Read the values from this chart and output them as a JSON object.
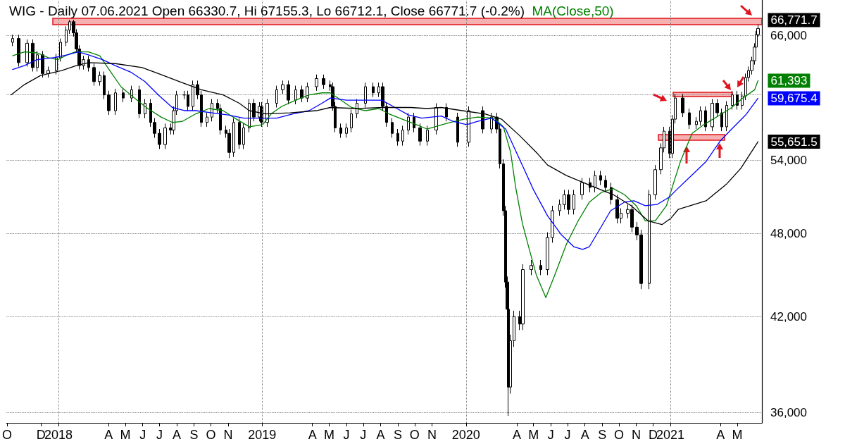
{
  "chart_data": {
    "type": "candlestick",
    "title": "WIG - Daily 07.06.2021 Open 66330.7, Hi 67155.3, Lo 66712.1, Close 66771.7 (-0.2%)",
    "log": "y",
    "grid": "y",
    "line_style": "solid",
    "xlim": [
      "2017-09-30",
      "2021-06-14"
    ],
    "ylim": [
      35400,
      69900
    ],
    "xticks": [
      {
        "value": "2017-10",
        "label": "O"
      },
      {
        "value": "2017-12",
        "label": "D"
      },
      {
        "value": "2018-01",
        "label": "2018"
      },
      {
        "value": "2018-04",
        "label": "A"
      },
      {
        "value": "2018-05",
        "label": "M"
      },
      {
        "value": "2018-06",
        "label": "J"
      },
      {
        "value": "2018-07",
        "label": "J"
      },
      {
        "value": "2018-08",
        "label": "A"
      },
      {
        "value": "2018-09",
        "label": "S"
      },
      {
        "value": "2018-10",
        "label": "O"
      },
      {
        "value": "2018-11",
        "label": "N"
      },
      {
        "value": "2019-01",
        "label": "2019"
      },
      {
        "value": "2019-04",
        "label": "A"
      },
      {
        "value": "2019-05",
        "label": "M"
      },
      {
        "value": "2019-06",
        "label": "J"
      },
      {
        "value": "2019-07",
        "label": "J"
      },
      {
        "value": "2019-08",
        "label": "A"
      },
      {
        "value": "2019-09",
        "label": "S"
      },
      {
        "value": "2019-10",
        "label": "O"
      },
      {
        "value": "2019-11",
        "label": "N"
      },
      {
        "value": "2020-01",
        "label": "2020"
      },
      {
        "value": "2020-04",
        "label": "A"
      },
      {
        "value": "2020-05",
        "label": "M"
      },
      {
        "value": "2020-06",
        "label": "J"
      },
      {
        "value": "2020-07",
        "label": "J"
      },
      {
        "value": "2020-08",
        "label": "A"
      },
      {
        "value": "2020-09",
        "label": "S"
      },
      {
        "value": "2020-10",
        "label": "O"
      },
      {
        "value": "2020-11",
        "label": "N"
      },
      {
        "value": "2020-12",
        "label": "D"
      },
      {
        "value": "2021-01",
        "label": "2021"
      },
      {
        "value": "2021-04",
        "label": "A"
      },
      {
        "value": "2021-05",
        "label": "M"
      }
    ],
    "yticks": [
      {
        "value": 36000,
        "label": "36,000"
      },
      {
        "value": 42000,
        "label": "42,000"
      },
      {
        "value": 48000,
        "label": "48,000"
      },
      {
        "value": 54000,
        "label": "54,000"
      },
      {
        "value": 60000,
        "label": null
      },
      {
        "value": 66000,
        "label": "66,000"
      }
    ],
    "ref_lines": [
      {
        "axis": "x",
        "value": "2018-01-01",
        "color": "#808080",
        "line_style": "dotted"
      },
      {
        "axis": "x",
        "value": "2019-01-01",
        "color": "#808080",
        "line_style": "dotted"
      },
      {
        "axis": "x",
        "value": "2020-01-01",
        "color": "#808080",
        "line_style": "dotted"
      },
      {
        "axis": "x",
        "value": "2021-01-01",
        "color": "#808080",
        "line_style": "dotted"
      }
    ],
    "series": [
      {
        "type": "candlestick",
        "color": "#000000",
        "x": [
          "2017-10-11",
          "2017-10-22",
          "2017-11-06",
          "2017-11-16",
          "2017-11-24",
          "2017-12-04",
          "2017-12-14",
          "2017-12-28",
          "2018-01-05",
          "2018-01-15",
          "2018-01-21",
          "2018-01-28",
          "2018-02-02",
          "2018-02-07",
          "2018-02-15",
          "2018-02-24",
          "2018-03-06",
          "2018-03-16",
          "2018-03-24",
          "2018-04-01",
          "2018-04-13",
          "2018-04-27",
          "2018-05-12",
          "2018-05-26",
          "2018-06-05",
          "2018-06-15",
          "2018-06-22",
          "2018-07-01",
          "2018-07-11",
          "2018-07-21",
          "2018-07-26",
          "2018-08-01",
          "2018-08-14",
          "2018-08-21",
          "2018-08-30",
          "2018-09-07",
          "2018-09-14",
          "2018-09-24",
          "2018-10-03",
          "2018-10-13",
          "2018-10-18",
          "2018-10-28",
          "2018-11-03",
          "2018-11-11",
          "2018-11-21",
          "2018-11-29",
          "2018-12-09",
          "2018-12-17",
          "2018-12-27",
          "2018-12-31",
          "2019-01-10",
          "2019-01-27",
          "2019-02-07",
          "2019-02-17",
          "2019-03-02",
          "2019-03-13",
          "2019-03-23",
          "2019-04-08",
          "2019-04-21",
          "2019-05-03",
          "2019-05-07",
          "2019-05-12",
          "2019-05-22",
          "2019-06-01",
          "2019-06-10",
          "2019-06-20",
          "2019-07-05",
          "2019-07-19",
          "2019-07-29",
          "2019-08-05",
          "2019-08-12",
          "2019-08-22",
          "2019-09-01",
          "2019-09-10",
          "2019-09-20",
          "2019-09-30",
          "2019-10-11",
          "2019-10-24",
          "2019-11-09",
          "2019-11-27",
          "2019-12-17",
          "2020-01-06",
          "2020-01-31",
          "2020-02-16",
          "2020-02-25",
          "2020-03-02",
          "2020-03-08",
          "2020-03-12",
          "2020-03-15",
          "2020-03-17",
          "2020-03-21",
          "2020-03-27",
          "2020-04-06",
          "2020-04-12",
          "2020-04-27",
          "2020-05-14",
          "2020-05-26",
          "2020-06-04",
          "2020-06-17",
          "2020-06-25",
          "2020-07-03",
          "2020-07-12",
          "2020-07-27",
          "2020-08-10",
          "2020-08-19",
          "2020-08-29",
          "2020-09-07",
          "2020-09-17",
          "2020-09-28",
          "2020-10-05",
          "2020-10-17",
          "2020-10-24",
          "2020-11-02",
          "2020-11-10",
          "2020-11-24",
          "2020-12-05",
          "2020-12-15",
          "2020-12-21",
          "2020-12-31",
          "2021-01-05",
          "2021-01-10",
          "2021-01-23",
          "2021-02-04",
          "2021-02-17",
          "2021-02-24",
          "2021-03-05",
          "2021-03-17",
          "2021-03-26",
          "2021-04-03",
          "2021-04-12",
          "2021-04-22",
          "2021-05-01",
          "2021-05-10",
          "2021-05-16",
          "2021-05-21",
          "2021-05-27",
          "2021-06-01",
          "2021-06-04",
          "2021-06-07"
        ],
        "ohlc": [
          [
            65300,
            66100,
            64900,
            65700
          ],
          [
            65700,
            66100,
            62800,
            63200
          ],
          [
            63200,
            65600,
            62800,
            65200
          ],
          [
            65200,
            65600,
            62300,
            62700
          ],
          [
            62700,
            64400,
            62300,
            64000
          ],
          [
            64000,
            64400,
            61700,
            62100
          ],
          [
            62100,
            62800,
            61700,
            62400
          ],
          [
            62400,
            64100,
            62000,
            63700
          ],
          [
            63700,
            65700,
            63300,
            65300
          ],
          [
            65300,
            67000,
            64900,
            66600
          ],
          [
            66600,
            67700,
            66200,
            67500
          ],
          [
            67500,
            67700,
            65900,
            66300
          ],
          [
            66300,
            66700,
            64200,
            64600
          ],
          [
            64600,
            65000,
            62500,
            62900
          ],
          [
            62900,
            63900,
            62500,
            63500
          ],
          [
            63500,
            63900,
            62300,
            62700
          ],
          [
            62700,
            63100,
            60900,
            61300
          ],
          [
            61300,
            62300,
            60900,
            61900
          ],
          [
            61900,
            62300,
            59600,
            60000
          ],
          [
            60000,
            60400,
            58100,
            58500
          ],
          [
            58500,
            60600,
            58100,
            60200
          ],
          [
            60200,
            60600,
            59300,
            59700
          ],
          [
            59700,
            60900,
            59300,
            60500
          ],
          [
            60500,
            60900,
            57800,
            58200
          ],
          [
            58200,
            59600,
            57800,
            59200
          ],
          [
            59200,
            59600,
            57000,
            57400
          ],
          [
            57400,
            57800,
            56000,
            56400
          ],
          [
            56400,
            56800,
            55000,
            55400
          ],
          [
            55400,
            57300,
            55000,
            56900
          ],
          [
            56900,
            57300,
            56300,
            56700
          ],
          [
            56700,
            58900,
            56300,
            58500
          ],
          [
            58500,
            60400,
            58100,
            60000
          ],
          [
            60000,
            60400,
            59600,
            60000
          ],
          [
            60000,
            60400,
            58500,
            58900
          ],
          [
            58900,
            61400,
            58500,
            61000
          ],
          [
            61000,
            61400,
            59600,
            60000
          ],
          [
            60000,
            60400,
            57000,
            57400
          ],
          [
            57400,
            58300,
            57000,
            57900
          ],
          [
            57900,
            59600,
            57500,
            59200
          ],
          [
            59200,
            59600,
            58300,
            58700
          ],
          [
            58700,
            59100,
            56300,
            56700
          ],
          [
            56700,
            57100,
            56000,
            56400
          ],
          [
            56400,
            56800,
            54200,
            54700
          ],
          [
            54700,
            57800,
            54300,
            57400
          ],
          [
            57400,
            57800,
            55000,
            55400
          ],
          [
            55400,
            57300,
            55000,
            56900
          ],
          [
            56900,
            59600,
            56500,
            59200
          ],
          [
            59200,
            59600,
            57500,
            57900
          ],
          [
            57900,
            59300,
            57500,
            58900
          ],
          [
            58900,
            59300,
            57000,
            57400
          ],
          [
            57400,
            59600,
            57000,
            59200
          ],
          [
            59200,
            60900,
            58800,
            60500
          ],
          [
            60500,
            61400,
            60100,
            61000
          ],
          [
            61000,
            61400,
            59100,
            59500
          ],
          [
            59500,
            60900,
            59100,
            60500
          ],
          [
            60500,
            60900,
            59300,
            59700
          ],
          [
            59700,
            61200,
            59300,
            60800
          ],
          [
            60800,
            62000,
            60400,
            61600
          ],
          [
            61600,
            62000,
            60600,
            61000
          ],
          [
            61000,
            61400,
            60400,
            60800
          ],
          [
            60800,
            61200,
            58500,
            58900
          ],
          [
            58900,
            59300,
            56500,
            56900
          ],
          [
            56900,
            57300,
            56000,
            56400
          ],
          [
            56400,
            57300,
            56000,
            56900
          ],
          [
            56900,
            58600,
            56500,
            58200
          ],
          [
            58200,
            59600,
            57800,
            59200
          ],
          [
            59200,
            61200,
            58800,
            60800
          ],
          [
            60800,
            61200,
            59800,
            60200
          ],
          [
            60200,
            61200,
            59800,
            60800
          ],
          [
            60800,
            61200,
            58500,
            58900
          ],
          [
            58900,
            59300,
            57000,
            57400
          ],
          [
            57400,
            57800,
            56000,
            56400
          ],
          [
            56400,
            56800,
            55300,
            55700
          ],
          [
            55700,
            57100,
            55300,
            56700
          ],
          [
            56700,
            58300,
            56300,
            57900
          ],
          [
            57900,
            58300,
            56500,
            56900
          ],
          [
            56900,
            57300,
            55300,
            55700
          ],
          [
            55700,
            57100,
            55300,
            56700
          ],
          [
            56700,
            59200,
            56300,
            58800
          ],
          [
            58800,
            59200,
            57500,
            57900
          ],
          [
            57900,
            58300,
            55200,
            55600
          ],
          [
            55600,
            58900,
            55200,
            58500
          ],
          [
            58500,
            58900,
            56400,
            56800
          ],
          [
            56800,
            58300,
            56400,
            57900
          ],
          [
            57900,
            58300,
            56400,
            56800
          ],
          [
            56800,
            57200,
            53300,
            53700
          ],
          [
            53700,
            54100,
            49400,
            49800
          ],
          [
            49800,
            50200,
            44000,
            44400
          ],
          [
            44400,
            44800,
            42100,
            42500
          ],
          [
            42500,
            42900,
            35800,
            37500
          ],
          [
            37500,
            40800,
            37100,
            40400
          ],
          [
            40400,
            42400,
            40000,
            42000
          ],
          [
            42000,
            42400,
            41100,
            41500
          ],
          [
            41500,
            45700,
            41100,
            45300
          ],
          [
            45300,
            46000,
            44900,
            45600
          ],
          [
            45600,
            46000,
            44900,
            45300
          ],
          [
            45300,
            48100,
            44900,
            47700
          ],
          [
            47700,
            50200,
            47300,
            49800
          ],
          [
            49800,
            50700,
            49400,
            50300
          ],
          [
            50300,
            51500,
            49900,
            51100
          ],
          [
            51100,
            51500,
            49500,
            49900
          ],
          [
            49900,
            51500,
            49500,
            51100
          ],
          [
            51100,
            52500,
            50700,
            52100
          ],
          [
            52100,
            52500,
            51300,
            51700
          ],
          [
            51700,
            53100,
            51300,
            52700
          ],
          [
            52700,
            53100,
            51900,
            52300
          ],
          [
            52300,
            52700,
            51300,
            51700
          ],
          [
            51700,
            52100,
            50300,
            50700
          ],
          [
            50700,
            51100,
            48800,
            49200
          ],
          [
            49200,
            50000,
            48800,
            49600
          ],
          [
            49600,
            50300,
            49200,
            49900
          ],
          [
            49900,
            50300,
            48100,
            48500
          ],
          [
            48500,
            48900,
            47500,
            47900
          ],
          [
            47900,
            48300,
            43900,
            44300
          ],
          [
            44300,
            51500,
            43900,
            51100
          ],
          [
            51100,
            53600,
            50700,
            53200
          ],
          [
            53200,
            55500,
            52800,
            55100
          ],
          [
            55100,
            57000,
            54700,
            56600
          ],
          [
            56600,
            57000,
            54200,
            54600
          ],
          [
            54600,
            58100,
            54200,
            57700
          ],
          [
            57700,
            60100,
            57300,
            59700
          ],
          [
            59700,
            60100,
            57900,
            58300
          ],
          [
            58300,
            58700,
            56800,
            57200
          ],
          [
            57200,
            57900,
            56800,
            57500
          ],
          [
            57500,
            58900,
            57100,
            58500
          ],
          [
            58500,
            58900,
            56600,
            57000
          ],
          [
            57000,
            59600,
            56600,
            59200
          ],
          [
            59200,
            59600,
            57900,
            58300
          ],
          [
            58300,
            58700,
            56600,
            57000
          ],
          [
            57000,
            59400,
            56600,
            59000
          ],
          [
            59000,
            60400,
            58600,
            60000
          ],
          [
            60000,
            60400,
            58600,
            59000
          ],
          [
            59000,
            60300,
            58600,
            59900
          ],
          [
            59900,
            62100,
            59500,
            61700
          ],
          [
            61700,
            62800,
            61300,
            62400
          ],
          [
            62400,
            63800,
            62000,
            63400
          ],
          [
            63400,
            65200,
            63000,
            64800
          ],
          [
            64800,
            66500,
            64400,
            66100
          ],
          [
            66100,
            67200,
            65900,
            66771.7
          ]
        ],
        "value_labels": [
          null,
          null,
          null,
          null,
          null,
          null,
          null,
          null,
          null,
          null,
          null,
          null,
          null,
          null,
          null,
          null,
          null,
          null,
          null,
          null,
          null,
          null,
          null,
          null,
          null,
          null,
          null,
          null,
          null,
          null,
          null,
          null,
          null,
          null,
          null,
          null,
          null,
          null,
          null,
          null,
          null,
          null,
          null,
          null,
          null,
          null,
          null,
          null,
          null,
          null,
          null,
          null,
          null,
          null,
          null,
          null,
          null,
          null,
          null,
          null,
          null,
          null,
          null,
          null,
          null,
          null,
          null,
          null,
          null,
          null,
          null,
          null,
          null,
          null,
          null,
          null,
          null,
          null,
          null,
          null,
          null,
          null,
          null,
          null,
          null,
          null,
          null,
          null,
          null,
          null,
          null,
          null,
          null,
          null,
          null,
          null,
          null,
          null,
          null,
          null,
          null,
          null,
          null,
          null,
          null,
          null,
          null,
          null,
          null,
          null,
          null,
          null,
          null,
          null,
          null,
          null,
          null,
          null,
          null,
          null,
          null,
          null,
          null,
          null,
          null,
          null,
          null,
          null,
          null,
          null,
          null,
          null,
          null,
          null,
          null,
          null,
          null,
          null,
          "66,771.7"
        ]
      },
      {
        "type": "line",
        "name": "MA(Close,50)",
        "color": "#008000",
        "x": [
          "2017-10-11",
          "2017-11-01",
          "2017-11-24",
          "2017-12-14",
          "2017-12-31",
          "2018-01-17",
          "2018-01-31",
          "2018-02-24",
          "2018-03-16",
          "2018-04-03",
          "2018-04-23",
          "2018-05-17",
          "2018-06-10",
          "2018-07-04",
          "2018-07-24",
          "2018-08-11",
          "2018-09-04",
          "2018-09-28",
          "2018-10-23",
          "2018-11-16",
          "2018-12-09",
          "2019-01-02",
          "2019-01-17",
          "2019-02-05",
          "2019-03-02",
          "2019-03-26",
          "2019-04-18",
          "2019-05-03",
          "2019-05-22",
          "2019-06-10",
          "2019-07-05",
          "2019-07-29",
          "2019-08-16",
          "2019-09-09",
          "2019-10-04",
          "2019-10-23",
          "2019-11-26",
          "2019-12-28",
          "2020-01-22",
          "2020-02-21",
          "2020-03-08",
          "2020-03-21",
          "2020-03-30",
          "2020-04-11",
          "2020-04-24",
          "2020-05-06",
          "2020-05-23",
          "2020-06-08",
          "2020-06-29",
          "2020-07-20",
          "2020-08-09",
          "2020-08-31",
          "2020-09-21",
          "2020-10-11",
          "2020-11-01",
          "2020-11-17",
          "2020-12-05",
          "2020-12-25",
          "2021-01-11",
          "2021-01-19",
          "2021-02-09",
          "2021-03-02",
          "2021-03-31",
          "2021-04-21",
          "2021-05-11",
          "2021-06-01",
          "2021-06-07"
        ],
        "values": [
          63900,
          64300,
          64200,
          63700,
          63500,
          64000,
          64300,
          64300,
          63900,
          62400,
          60800,
          59700,
          58700,
          57900,
          57400,
          57500,
          58200,
          58700,
          58500,
          57700,
          57000,
          57200,
          58200,
          58900,
          59500,
          60000,
          60200,
          60200,
          59500,
          58800,
          58500,
          58700,
          58200,
          57700,
          57200,
          56800,
          57300,
          57700,
          57900,
          57800,
          57000,
          54700,
          51700,
          48800,
          46700,
          44900,
          43300,
          44900,
          47200,
          49000,
          50500,
          51300,
          51600,
          51100,
          50200,
          49000,
          49000,
          50200,
          52700,
          53900,
          56400,
          57200,
          58100,
          58800,
          59700,
          60500,
          61393
        ],
        "value_labels": [
          null,
          null,
          null,
          null,
          null,
          null,
          null,
          null,
          null,
          null,
          null,
          null,
          null,
          null,
          null,
          null,
          null,
          null,
          null,
          null,
          null,
          null,
          null,
          null,
          null,
          null,
          null,
          null,
          null,
          null,
          null,
          null,
          null,
          null,
          null,
          null,
          null,
          null,
          null,
          null,
          null,
          null,
          null,
          null,
          null,
          null,
          null,
          null,
          null,
          null,
          null,
          null,
          null,
          null,
          null,
          null,
          null,
          null,
          null,
          null,
          null,
          null,
          null,
          null,
          null,
          null,
          "61,393"
        ]
      },
      {
        "type": "line",
        "color": "#0000ff",
        "x": [
          "2017-10-11",
          "2017-11-01",
          "2017-11-24",
          "2017-12-23",
          "2018-01-17",
          "2018-02-05",
          "2018-02-24",
          "2018-03-21",
          "2018-04-13",
          "2018-05-12",
          "2018-06-05",
          "2018-06-29",
          "2018-07-24",
          "2018-08-16",
          "2018-09-04",
          "2018-10-03",
          "2018-11-01",
          "2018-11-29",
          "2018-12-29",
          "2019-01-27",
          "2019-02-25",
          "2019-03-26",
          "2019-04-18",
          "2019-05-03",
          "2019-06-01",
          "2019-07-05",
          "2019-08-03",
          "2019-08-27",
          "2019-09-20",
          "2019-10-14",
          "2019-11-18",
          "2019-12-09",
          "2020-01-02",
          "2020-01-22",
          "2020-02-16",
          "2020-03-12",
          "2020-04-06",
          "2020-05-01",
          "2020-05-26",
          "2020-06-20",
          "2020-07-12",
          "2020-07-28",
          "2020-08-09",
          "2020-08-27",
          "2020-09-16",
          "2020-10-11",
          "2020-10-28",
          "2020-11-17",
          "2020-12-08",
          "2020-12-30",
          "2021-01-12",
          "2021-03-06",
          "2021-03-31",
          "2021-04-21",
          "2021-05-16",
          "2021-06-07"
        ],
        "values": [
          62500,
          62900,
          63500,
          63700,
          64000,
          64300,
          64000,
          63500,
          62900,
          62200,
          61300,
          60000,
          58800,
          58500,
          58500,
          58300,
          58100,
          57800,
          57800,
          57800,
          58200,
          58500,
          59200,
          59700,
          59500,
          59500,
          59500,
          58800,
          58100,
          57800,
          58000,
          57500,
          57200,
          57500,
          57800,
          56800,
          54100,
          51500,
          49400,
          47900,
          47000,
          46800,
          47000,
          48300,
          49800,
          50500,
          50600,
          50200,
          50300,
          50900,
          51500,
          53900,
          55700,
          56800,
          58100,
          59675.4
        ],
        "value_labels": [
          null,
          null,
          null,
          null,
          null,
          null,
          null,
          null,
          null,
          null,
          null,
          null,
          null,
          null,
          null,
          null,
          null,
          null,
          null,
          null,
          null,
          null,
          null,
          null,
          null,
          null,
          null,
          null,
          null,
          null,
          null,
          null,
          null,
          null,
          null,
          null,
          null,
          null,
          null,
          null,
          null,
          null,
          null,
          null,
          null,
          null,
          null,
          null,
          null,
          null,
          null,
          null,
          null,
          null,
          null,
          "59,675.4"
        ]
      },
      {
        "type": "line",
        "color": "#000000",
        "x": [
          "2017-10-08",
          "2017-11-01",
          "2017-11-30",
          "2018-01-07",
          "2018-02-02",
          "2018-02-24",
          "2018-04-13",
          "2018-05-31",
          "2018-06-29",
          "2018-08-06",
          "2018-09-14",
          "2018-10-23",
          "2018-11-21",
          "2018-12-09",
          "2019-01-07",
          "2019-02-20",
          "2019-04-08",
          "2019-05-03",
          "2019-06-20",
          "2019-08-06",
          "2019-09-24",
          "2019-10-23",
          "2019-11-18",
          "2019-12-25",
          "2020-02-04",
          "2020-03-05",
          "2020-04-06",
          "2020-05-06",
          "2020-05-26",
          "2020-06-29",
          "2020-08-09",
          "2020-09-21",
          "2020-10-23",
          "2020-11-22",
          "2020-12-17",
          "2021-01-02",
          "2021-01-15",
          "2021-03-06",
          "2021-04-12",
          "2021-05-07",
          "2021-06-07"
        ],
        "values": [
          60000,
          61000,
          61900,
          62400,
          62900,
          63200,
          63100,
          62700,
          62100,
          61300,
          60500,
          60000,
          59200,
          58500,
          58200,
          58300,
          58500,
          58800,
          58700,
          58800,
          58800,
          58700,
          58800,
          58500,
          58200,
          57700,
          56200,
          54700,
          53600,
          52700,
          51900,
          51100,
          50200,
          49000,
          48700,
          49200,
          49900,
          50600,
          52000,
          53300,
          55651.5
        ],
        "value_labels": [
          null,
          null,
          null,
          null,
          null,
          null,
          null,
          null,
          null,
          null,
          null,
          null,
          null,
          null,
          null,
          null,
          null,
          null,
          null,
          null,
          null,
          null,
          null,
          null,
          null,
          null,
          null,
          null,
          null,
          null,
          null,
          null,
          null,
          null,
          null,
          null,
          null,
          null,
          null,
          null,
          "55,651.5"
        ]
      }
    ]
  }
}
